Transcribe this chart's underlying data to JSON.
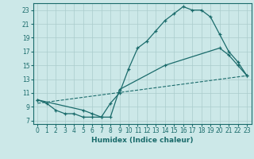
{
  "title": "",
  "xlabel": "Humidex (Indice chaleur)",
  "bg_color": "#cce8e8",
  "grid_color": "#aacccc",
  "line_color": "#1a6b6b",
  "xlim": [
    -0.5,
    23.5
  ],
  "ylim": [
    6.5,
    24.0
  ],
  "xticks": [
    0,
    1,
    2,
    3,
    4,
    5,
    6,
    7,
    8,
    9,
    10,
    11,
    12,
    13,
    14,
    15,
    16,
    17,
    18,
    19,
    20,
    21,
    22,
    23
  ],
  "yticks": [
    7,
    9,
    11,
    13,
    15,
    17,
    19,
    21,
    23
  ],
  "line1_x": [
    0,
    1,
    2,
    3,
    4,
    5,
    6,
    7,
    8,
    9,
    10,
    11,
    12,
    13,
    14,
    15,
    16,
    17,
    18,
    19,
    20,
    21,
    22,
    23
  ],
  "line1_y": [
    10,
    9.5,
    8.5,
    8,
    8,
    7.5,
    7.5,
    7.5,
    9.5,
    11,
    14.5,
    17.5,
    18.5,
    20,
    21.5,
    22.5,
    23.5,
    23.0,
    23.0,
    22.0,
    19.5,
    17.0,
    15.5,
    13.5
  ],
  "line2_x": [
    0,
    5,
    6,
    7,
    8,
    9,
    14,
    20,
    21,
    22,
    23
  ],
  "line2_y": [
    10,
    8.5,
    8.0,
    7.5,
    7.5,
    11.5,
    15.0,
    17.5,
    16.5,
    15.0,
    13.5
  ],
  "line3_x": [
    0,
    23
  ],
  "line3_y": [
    9.5,
    13.5
  ]
}
